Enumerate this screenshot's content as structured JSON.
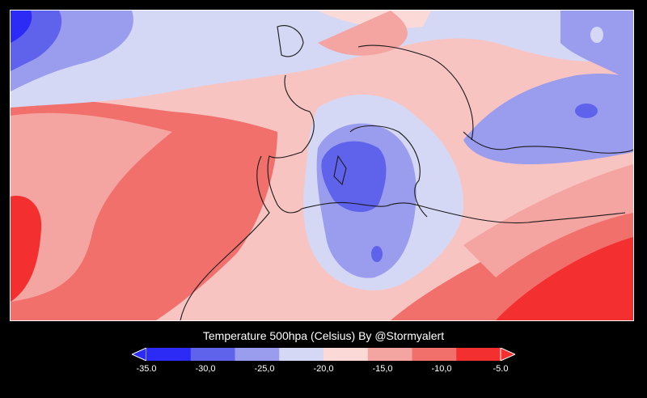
{
  "legend": {
    "title": "Temperature 500hpa (Celsius) By @Stormyalert",
    "ticks": [
      "-35.0",
      "-30,0",
      "-25,0",
      "-20,0",
      "-15,0",
      "-10,0",
      "-5.0"
    ],
    "colors": [
      "#2b2bf5",
      "#5f63ec",
      "#9a9cee",
      "#d5d8f4",
      "#fbd9d7",
      "#f4a4a1",
      "#f1706c",
      "#f42f2f"
    ]
  }
}
